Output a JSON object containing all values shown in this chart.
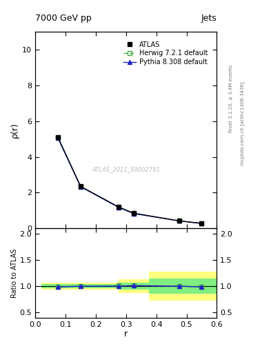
{
  "title_left": "7000 GeV pp",
  "title_right": "Jets",
  "ylabel_main": "ρ(r)",
  "ylabel_ratio": "Ratio to ATLAS",
  "xlabel": "r",
  "right_label_top": "Rivet 3.1.10, ≥ 3.4M events",
  "right_label_bot": "mcplots.cern.ch [arXiv:1306.3436]",
  "watermark": "ATLAS_2011_S9002791",
  "x_data": [
    0.075,
    0.15,
    0.275,
    0.325,
    0.475,
    0.55
  ],
  "atlas_y": [
    5.1,
    2.35,
    1.2,
    0.85,
    0.42,
    0.28
  ],
  "herwig_y": [
    5.05,
    2.33,
    1.18,
    0.83,
    0.42,
    0.27
  ],
  "pythia_y": [
    5.05,
    2.33,
    1.18,
    0.83,
    0.42,
    0.27
  ],
  "herwig_ratio": [
    0.99,
    1.0,
    1.01,
    1.01,
    1.0,
    0.985
  ],
  "pythia_ratio": [
    0.985,
    1.0,
    1.0,
    1.01,
    1.0,
    0.985
  ],
  "band_bin_lo": [
    0.02,
    0.1,
    0.2,
    0.275,
    0.375,
    0.5
  ],
  "band_bin_hi": [
    0.12,
    0.2,
    0.3,
    0.375,
    0.525,
    0.6
  ],
  "yellow_lo": [
    0.94,
    0.94,
    0.93,
    0.87,
    0.73,
    0.72
  ],
  "yellow_hi": [
    1.06,
    1.06,
    1.07,
    1.13,
    1.27,
    1.28
  ],
  "green_lo": [
    0.965,
    0.965,
    0.965,
    0.935,
    0.86,
    0.86
  ],
  "green_hi": [
    1.035,
    1.035,
    1.035,
    1.065,
    1.14,
    1.14
  ],
  "xlim": [
    0.0,
    0.6
  ],
  "ylim_main": [
    0,
    11
  ],
  "ylim_ratio": [
    0.4,
    2.1
  ],
  "yticks_main": [
    0,
    2,
    4,
    6,
    8,
    10
  ],
  "yticks_ratio": [
    0.5,
    1.0,
    1.5,
    2.0
  ],
  "xticks": [
    0.0,
    0.1,
    0.2,
    0.3,
    0.4,
    0.5,
    0.6
  ],
  "color_atlas": "#000000",
  "color_herwig": "#44aa44",
  "color_pythia": "#2222cc",
  "color_yellow": "#ffff80",
  "color_green": "#80ee80",
  "bg_color": "#ffffff"
}
